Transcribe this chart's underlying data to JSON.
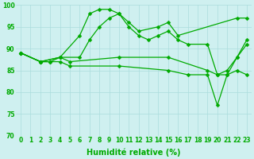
{
  "x_range": [
    -0.5,
    23.5
  ],
  "y_range": [
    70,
    100
  ],
  "background_color": "#cff0f0",
  "grid_color": "#aadddd",
  "line_color": "#00aa00",
  "marker": "D",
  "marker_size": 2.5,
  "line_width": 0.9,
  "xlabel": "Humidité relative (%)",
  "xlabel_fontsize": 7,
  "tick_fontsize": 5.5,
  "series": [
    {
      "x": [
        0,
        2,
        4,
        6,
        7,
        8,
        9,
        10,
        11,
        12,
        14,
        15,
        16,
        22,
        23
      ],
      "y": [
        89,
        87,
        88,
        93,
        98,
        99,
        99,
        98,
        96,
        94,
        95,
        96,
        93,
        97,
        97
      ]
    },
    {
      "x": [
        0,
        2,
        4,
        6,
        7,
        8,
        9,
        10,
        11,
        12,
        13,
        14,
        15,
        16,
        17,
        19,
        20,
        21,
        22,
        23
      ],
      "y": [
        89,
        87,
        88,
        88,
        92,
        95,
        97,
        98,
        95,
        93,
        92,
        93,
        94,
        92,
        91,
        91,
        84,
        84,
        88,
        92
      ]
    },
    {
      "x": [
        0,
        2,
        3,
        4,
        5,
        10,
        15,
        19,
        20,
        21,
        22,
        23
      ],
      "y": [
        89,
        87,
        87,
        88,
        87,
        88,
        88,
        85,
        84,
        85,
        88,
        91
      ]
    },
    {
      "x": [
        0,
        2,
        3,
        4,
        5,
        10,
        15,
        17,
        19,
        20,
        21,
        22,
        23
      ],
      "y": [
        89,
        87,
        87,
        87,
        86,
        86,
        85,
        84,
        84,
        77,
        84,
        85,
        84
      ]
    }
  ]
}
